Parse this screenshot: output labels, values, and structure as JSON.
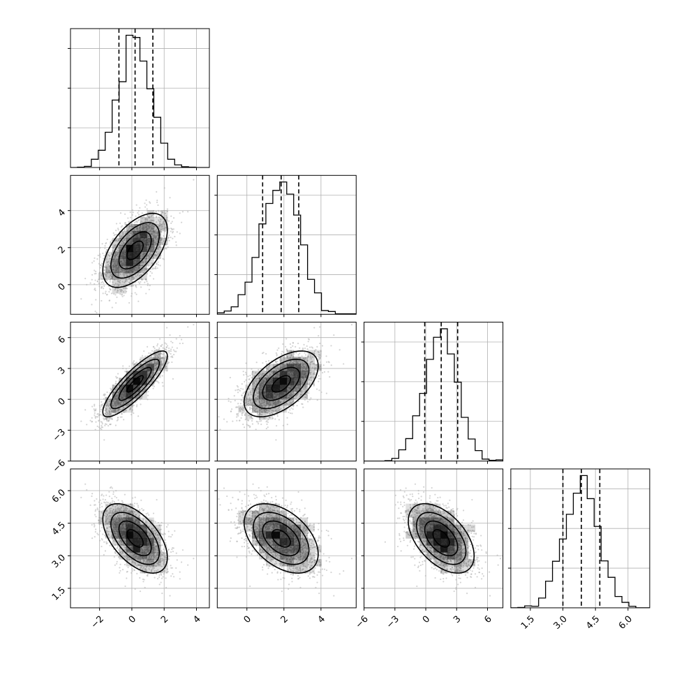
{
  "chart_data": {
    "type": "corner",
    "title": "",
    "parameters": [
      "",
      "",
      "",
      ""
    ],
    "grid": true,
    "points_shown": true,
    "density_color": "#000000",
    "contour_color": "#000000",
    "point_color": "#b0b0b0",
    "quantile_line_style": "dashed",
    "variables": [
      {
        "mean": 0.2,
        "std": 1.0,
        "range": [
          -3.8,
          4.8
        ],
        "ticks": [
          -2,
          0,
          2,
          4
        ],
        "tick_labels": [
          "−2",
          "0",
          "2",
          "4"
        ],
        "quantiles": [
          -0.8,
          0.2,
          1.3
        ]
      },
      {
        "mean": 1.85,
        "std": 1.0,
        "range": [
          -1.6,
          5.9
        ],
        "ticks": [
          0,
          2,
          4
        ],
        "tick_labels": [
          "0",
          "2",
          "4"
        ],
        "quantiles": [
          0.85,
          1.85,
          2.8
        ]
      },
      {
        "mean": 1.5,
        "std": 1.6,
        "range": [
          -6.0,
          7.5
        ],
        "ticks": [
          -6,
          -3,
          0,
          3,
          6
        ],
        "tick_labels": [
          "−6",
          "−3",
          "0",
          "3",
          "6"
        ],
        "quantiles": [
          -0.1,
          1.5,
          3.1
        ]
      },
      {
        "mean": 3.8,
        "std": 0.8,
        "range": [
          0.6,
          7.0
        ],
        "ticks": [
          1.5,
          3.0,
          4.5,
          6.0
        ],
        "tick_labels": [
          "1.5",
          "3.0",
          "4.5",
          "6.0"
        ],
        "quantiles": [
          3.0,
          3.85,
          4.7
        ]
      }
    ],
    "correlations": [
      [
        1.0,
        0.55,
        0.85,
        -0.55
      ],
      [
        0.55,
        1.0,
        0.55,
        -0.45
      ],
      [
        0.85,
        0.55,
        1.0,
        -0.5
      ],
      [
        -0.55,
        -0.45,
        -0.5,
        1.0
      ]
    ],
    "sample_count": 2000,
    "hist_bins": 20,
    "density_bins": 20
  }
}
